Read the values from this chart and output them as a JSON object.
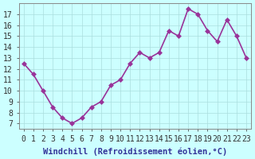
{
  "x": [
    0,
    1,
    2,
    3,
    4,
    5,
    6,
    7,
    8,
    9,
    10,
    11,
    12,
    13,
    14,
    15,
    16,
    17,
    18,
    19,
    20,
    21,
    22,
    23
  ],
  "y": [
    12.5,
    11.5,
    10.0,
    8.5,
    7.5,
    7.0,
    7.5,
    8.5,
    9.0,
    10.5,
    11.0,
    12.5,
    13.5,
    13.0,
    13.5,
    15.5,
    15.0,
    17.5,
    17.0,
    15.5,
    14.5,
    16.5,
    15.0,
    13.0
  ],
  "line_color": "#993399",
  "marker_color": "#993399",
  "bg_color": "#ccffff",
  "grid_color": "#aadddd",
  "plot_bg": "#ccffff",
  "xlabel": "Windchill (Refroidissement éolien,°C)",
  "ylabel_ticks": [
    7,
    8,
    9,
    10,
    11,
    12,
    13,
    14,
    15,
    16,
    17
  ],
  "ylim": [
    6.5,
    18.0
  ],
  "xlim": [
    -0.5,
    23.5
  ],
  "xticks": [
    0,
    1,
    2,
    3,
    4,
    5,
    6,
    7,
    8,
    9,
    10,
    11,
    12,
    13,
    14,
    15,
    16,
    17,
    18,
    19,
    20,
    21,
    22,
    23
  ],
  "title_color": "#333333",
  "tick_label_color": "#333333",
  "xlabel_color": "#333399",
  "font_size_ticks": 7,
  "font_size_xlabel": 7.5,
  "line_width": 1.2,
  "marker_size": 3
}
